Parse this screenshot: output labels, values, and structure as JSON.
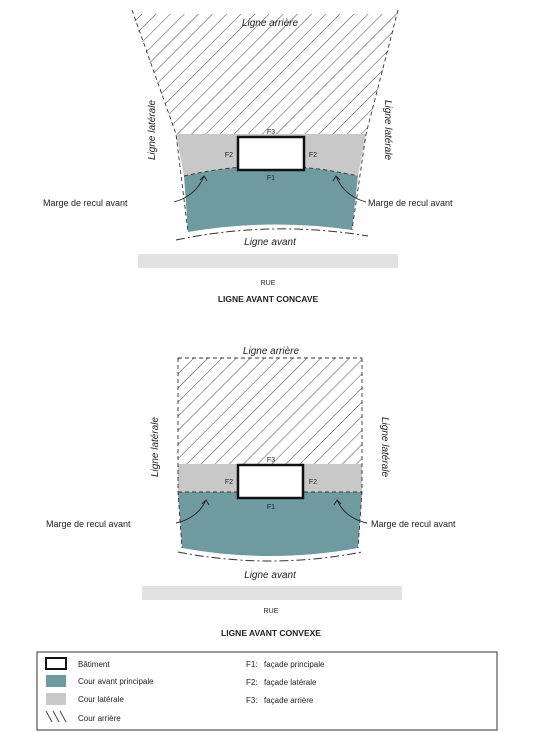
{
  "diagram1": {
    "rear_line": "Ligne arrière",
    "side_left": "Ligne latérale",
    "side_right": "Ligne latérale",
    "front_setback_left": "Marge de recul avant",
    "front_setback_right": "Marge de recul avant",
    "front_line": "Ligne avant",
    "f1": "F1",
    "f2_left": "F2",
    "f2_right": "F2",
    "f3": "F3",
    "street": "RUE",
    "caption": "LIGNE AVANT CONCAVE"
  },
  "diagram2": {
    "rear_line": "Ligne arrière",
    "side_left": "Ligne latérale",
    "side_right": "Ligne latérale",
    "front_setback_left": "Marge de recul avant",
    "front_setback_right": "Marge de recul avant",
    "front_line": "Ligne avant",
    "f1": "F1",
    "f2_left": "F2",
    "f2_right": "F2",
    "f3": "F3",
    "street": "RUE",
    "caption": "LIGNE AVANT CONVEXE"
  },
  "legend": {
    "items": [
      {
        "label": "Bâtiment"
      },
      {
        "label": "Cour avant principale"
      },
      {
        "label": "Cour latérale"
      },
      {
        "label": "Cour arrière"
      }
    ],
    "facades": [
      {
        "code": "F1:",
        "label": "façade principale"
      },
      {
        "code": "F2:",
        "label": "façade latérale"
      },
      {
        "code": "F3:",
        "label": "façade arrière"
      }
    ]
  },
  "colors": {
    "front_yard": "#6f9aa0",
    "side_yard": "#c8c8c8",
    "street": "#e2e2e2",
    "building": "#ffffff"
  }
}
